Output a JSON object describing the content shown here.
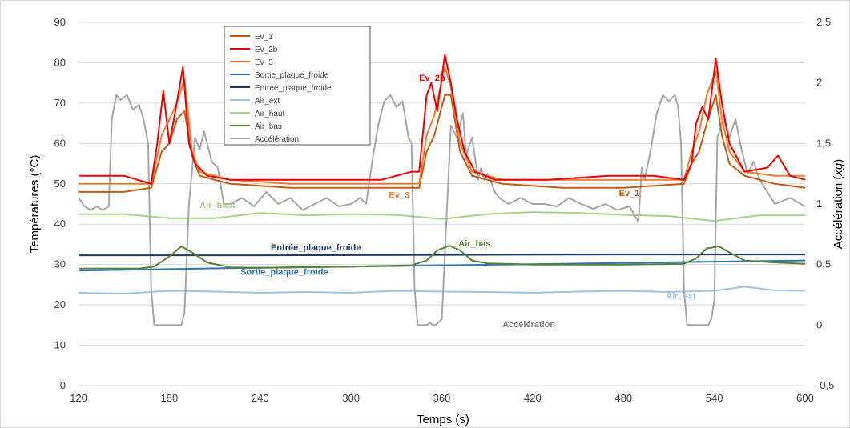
{
  "chart_data": {
    "type": "line",
    "title": "",
    "xlabel": "Temps (s)",
    "ylabel": "Températures (°C)",
    "y2label_prefix": "Accélération (",
    "y2label_unit": "xg",
    "y2label_suffix": ")",
    "xlim": [
      120,
      600
    ],
    "ylim": [
      0,
      90
    ],
    "y2lim": [
      -0.5,
      2.5
    ],
    "x_ticks": [
      "120",
      "180",
      "240",
      "300",
      "360",
      "420",
      "480",
      "540",
      "600"
    ],
    "y_ticks": [
      "0",
      "10",
      "20",
      "30",
      "40",
      "50",
      "60",
      "70",
      "80",
      "90"
    ],
    "y2_ticks": [
      "-0,5",
      "0",
      "0,5",
      "1",
      "1,5",
      "2",
      "2,5"
    ],
    "grid": "horizontal",
    "legend_position": "top-left",
    "series": [
      {
        "name": "Ev_1",
        "color": "#c55a11",
        "axis": "left",
        "x": [
          120,
          150,
          168,
          175,
          180,
          185,
          190,
          195,
          200,
          220,
          260,
          300,
          330,
          345,
          350,
          355,
          362,
          366,
          372,
          380,
          400,
          440,
          480,
          520,
          525,
          530,
          535,
          541,
          545,
          550,
          560,
          580,
          600
        ],
        "y": [
          48,
          48,
          49,
          58,
          60,
          66,
          68,
          57,
          52,
          50,
          49,
          49,
          49,
          49,
          58,
          62,
          72,
          72,
          58,
          52,
          50,
          49,
          49,
          50,
          55,
          58,
          65,
          72,
          62,
          55,
          52,
          50,
          49
        ]
      },
      {
        "name": "Ev_2b",
        "color": "#ee0000",
        "axis": "left",
        "x": [
          120,
          150,
          168,
          172,
          176,
          180,
          184,
          189,
          193,
          197,
          205,
          220,
          250,
          280,
          300,
          320,
          340,
          345,
          350,
          353,
          357,
          362,
          366,
          370,
          375,
          382,
          395,
          430,
          470,
          500,
          520,
          525,
          528,
          532,
          536,
          541,
          545,
          550,
          560,
          575,
          582,
          590,
          600
        ],
        "y": [
          52,
          52,
          50,
          60,
          73,
          60,
          68,
          79,
          60,
          55,
          52,
          51,
          51,
          51,
          51,
          51,
          53,
          53,
          72,
          75,
          68,
          82,
          75,
          66,
          58,
          53,
          51,
          51,
          52,
          52,
          51,
          55,
          65,
          69,
          66,
          81,
          70,
          60,
          53,
          54,
          57,
          52,
          51
        ]
      },
      {
        "name": "Ev_3",
        "color": "#ed7d31",
        "axis": "left",
        "x": [
          120,
          150,
          168,
          175,
          180,
          185,
          190,
          195,
          200,
          220,
          260,
          300,
          330,
          345,
          350,
          355,
          362,
          366,
          372,
          380,
          400,
          440,
          480,
          520,
          525,
          530,
          535,
          541,
          545,
          550,
          560,
          580,
          600
        ],
        "y": [
          50,
          50,
          50,
          62,
          66,
          70,
          76,
          58,
          53,
          51,
          50,
          50,
          50,
          50,
          62,
          67,
          79,
          74,
          60,
          53,
          51,
          51,
          51,
          51,
          58,
          63,
          72,
          78,
          66,
          58,
          53,
          52,
          52
        ]
      },
      {
        "name": "Sortie_plaque_froide",
        "color": "#2e75b6",
        "axis": "left",
        "x": [
          120,
          200,
          300,
          400,
          500,
          600
        ],
        "y": [
          28.5,
          29,
          29.5,
          30,
          30.5,
          31
        ]
      },
      {
        "name": "Entrée_plaque_froide",
        "color": "#1f3864",
        "axis": "left",
        "x": [
          120,
          240,
          360,
          480,
          600
        ],
        "y": [
          32.3,
          32.3,
          32.4,
          32.5,
          32.5
        ]
      },
      {
        "name": "Air_ext",
        "color": "#9dc3e6",
        "axis": "left",
        "x": [
          120,
          150,
          180,
          210,
          240,
          270,
          300,
          330,
          360,
          390,
          420,
          450,
          480,
          510,
          540,
          560,
          580,
          600
        ],
        "y": [
          23,
          22.8,
          23.5,
          23.3,
          23,
          23.2,
          23,
          23.5,
          23.3,
          23.2,
          23,
          23.3,
          23.5,
          23.2,
          23.5,
          24.5,
          23.6,
          23.5
        ]
      },
      {
        "name": "Air_haut",
        "color": "#a9d18e",
        "axis": "left",
        "x": [
          120,
          150,
          180,
          210,
          240,
          270,
          300,
          330,
          360,
          390,
          420,
          450,
          480,
          510,
          540,
          570,
          600
        ],
        "y": [
          42.5,
          42.5,
          41.5,
          41.5,
          42.8,
          42.2,
          42.5,
          42.3,
          41.3,
          42.5,
          43,
          42.8,
          42.3,
          42,
          40.8,
          42.2,
          42.2
        ]
      },
      {
        "name": "Air_bas",
        "color": "#548235",
        "axis": "left",
        "x": [
          120,
          160,
          170,
          180,
          188,
          195,
          205,
          220,
          240,
          300,
          340,
          350,
          357,
          365,
          372,
          380,
          390,
          420,
          480,
          520,
          528,
          535,
          543,
          550,
          560,
          580,
          600
        ],
        "y": [
          29,
          29,
          29.5,
          32,
          34.5,
          33,
          30.5,
          29.3,
          29.2,
          29.5,
          29.8,
          31,
          33.5,
          34.7,
          33.5,
          31,
          30.3,
          30,
          30,
          30.2,
          31.5,
          34,
          34.5,
          33,
          31,
          30.5,
          30.2
        ]
      },
      {
        "name": "Accélération",
        "color": "#a6a6a6",
        "axis": "right",
        "x": [
          120,
          124,
          128,
          132,
          136,
          140,
          142,
          145,
          148,
          152,
          156,
          160,
          163,
          166,
          168,
          170,
          172,
          174,
          186,
          188,
          190,
          193,
          197,
          200,
          203,
          205,
          208,
          212,
          216,
          220,
          228,
          236,
          244,
          252,
          260,
          268,
          276,
          284,
          292,
          300,
          306,
          310,
          314,
          318,
          322,
          326,
          330,
          334,
          338,
          340,
          342,
          344,
          348,
          350,
          352,
          354,
          356,
          360,
          366,
          370,
          374,
          376,
          380,
          384,
          386,
          388,
          390,
          392,
          395,
          398,
          404,
          412,
          420,
          428,
          436,
          444,
          452,
          460,
          468,
          476,
          484,
          490,
          492,
          494,
          498,
          502,
          506,
          510,
          514,
          516,
          518,
          520,
          522,
          536,
          538,
          540,
          542,
          546,
          550,
          554,
          558,
          562,
          566,
          570,
          580,
          590,
          600
        ],
        "y": [
          1.05,
          0.98,
          0.95,
          0.98,
          0.95,
          0.98,
          1.7,
          1.9,
          1.86,
          1.9,
          1.78,
          1.82,
          1.7,
          1.5,
          0.3,
          0,
          0,
          0,
          0,
          0,
          0.1,
          1.0,
          1.55,
          1.45,
          1.6,
          1.5,
          1.35,
          1.3,
          1.0,
          1.0,
          1.05,
          0.98,
          1.1,
          1.0,
          1.05,
          0.95,
          1.0,
          1.05,
          0.98,
          1.0,
          1.05,
          1.0,
          1.35,
          1.65,
          1.85,
          1.9,
          1.8,
          1.85,
          1.55,
          1.5,
          0.3,
          0,
          0,
          0,
          0.02,
          0,
          0,
          0.05,
          1.65,
          1.55,
          1.75,
          1.4,
          1.55,
          1.2,
          1.3,
          1.2,
          1.25,
          1.2,
          1.1,
          1.05,
          1.0,
          1.05,
          1.0,
          1.0,
          0.98,
          1.05,
          1.0,
          0.96,
          1.0,
          0.95,
          0.98,
          0.85,
          1.3,
          1.2,
          1.45,
          1.75,
          1.9,
          1.85,
          1.9,
          1.8,
          1.5,
          0.3,
          0,
          0,
          0.05,
          0.2,
          1.55,
          1.7,
          1.55,
          1.7,
          1.45,
          1.25,
          1.35,
          1.2,
          1.0,
          1.05,
          0.98
        ]
      }
    ],
    "annotations": [
      {
        "text": "Ev_2b",
        "x": 345,
        "y": 75.5,
        "color": "#ee0000",
        "axis": "left"
      },
      {
        "text": "Ev_3",
        "x": 325,
        "y": 46.5,
        "color": "#ed7d31",
        "axis": "left"
      },
      {
        "text": "Ev_1",
        "x": 477,
        "y": 47,
        "color": "#c55a11",
        "axis": "left"
      },
      {
        "text": "Air_haut",
        "x": 200,
        "y": 44,
        "color": "#a9d18e",
        "axis": "left"
      },
      {
        "text": "Entrée_plaque_froide",
        "x": 247,
        "y": 33.5,
        "color": "#1f3864",
        "axis": "left"
      },
      {
        "text": "Air_bas",
        "x": 371,
        "y": 34.5,
        "color": "#548235",
        "axis": "left"
      },
      {
        "text": "Sortie_plaque_froide",
        "x": 227,
        "y": 27.5,
        "color": "#2e75b6",
        "axis": "left"
      },
      {
        "text": "Air_ext",
        "x": 508,
        "y": 21.5,
        "color": "#9dc3e6",
        "axis": "left"
      },
      {
        "text": "Accélération",
        "x": 400,
        "y": 14.5,
        "color": "#808080",
        "axis": "left"
      }
    ]
  }
}
